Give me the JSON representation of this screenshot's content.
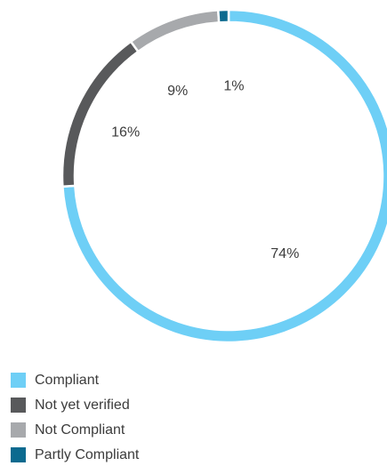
{
  "chart_data": {
    "type": "pie",
    "style": "donut",
    "categories": [
      "Compliant",
      "Not yet verified",
      "Not Compliant",
      "Partly Compliant"
    ],
    "values": [
      74,
      16,
      9,
      1
    ],
    "value_labels": [
      "74%",
      "16%",
      "9%",
      "1%"
    ],
    "colors": [
      "#6ecff6",
      "#58595b",
      "#a7a9ac",
      "#0b6a8f"
    ],
    "legend_position": "bottom-left"
  },
  "legend": {
    "items": [
      {
        "label": "Compliant",
        "color": "#6ecff6"
      },
      {
        "label": "Not yet verified",
        "color": "#58595b"
      },
      {
        "label": "Not Compliant",
        "color": "#a7a9ac"
      },
      {
        "label": "Partly Compliant",
        "color": "#0b6a8f"
      }
    ]
  }
}
